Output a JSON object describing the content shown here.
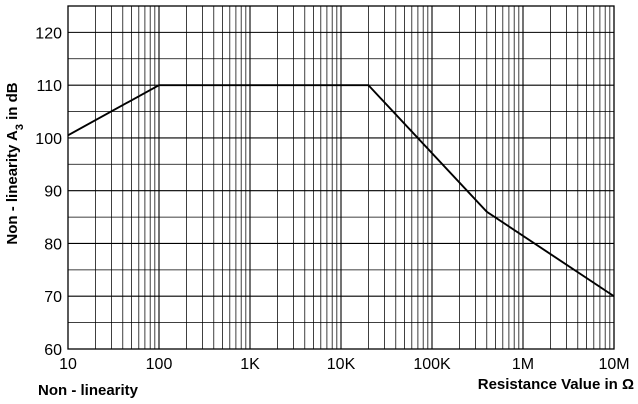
{
  "chart_data": {
    "type": "line",
    "caption": "Non - linearity",
    "xlabel": "Resistance Value in Ω",
    "ylabel": "Non - linearity A3 in dB",
    "ylabel_parts": {
      "main": "Non - linearity A",
      "subscript": "3",
      "suffix": " in dB"
    },
    "x_scale": "log",
    "xlim": [
      10,
      10000000
    ],
    "ylim": [
      60,
      125
    ],
    "grid": true,
    "x_ticks": [
      {
        "value": 10,
        "label": "10"
      },
      {
        "value": 100,
        "label": "100"
      },
      {
        "value": 1000,
        "label": "1K"
      },
      {
        "value": 10000,
        "label": "10K"
      },
      {
        "value": 100000,
        "label": "100K"
      },
      {
        "value": 1000000,
        "label": "1M"
      },
      {
        "value": 10000000,
        "label": "10M"
      }
    ],
    "y_ticks": [
      {
        "value": 60,
        "label": "60"
      },
      {
        "value": 70,
        "label": "70"
      },
      {
        "value": 80,
        "label": "80"
      },
      {
        "value": 90,
        "label": "90"
      },
      {
        "value": 100,
        "label": "100"
      },
      {
        "value": 110,
        "label": "110"
      },
      {
        "value": 120,
        "label": "120"
      }
    ],
    "series": [
      {
        "color": "#000000",
        "points": [
          {
            "x": 10,
            "y": 100.5
          },
          {
            "x": 100,
            "y": 110
          },
          {
            "x": 20000,
            "y": 110
          },
          {
            "x": 400000,
            "y": 86
          },
          {
            "x": 10000000,
            "y": 70
          }
        ]
      }
    ]
  }
}
